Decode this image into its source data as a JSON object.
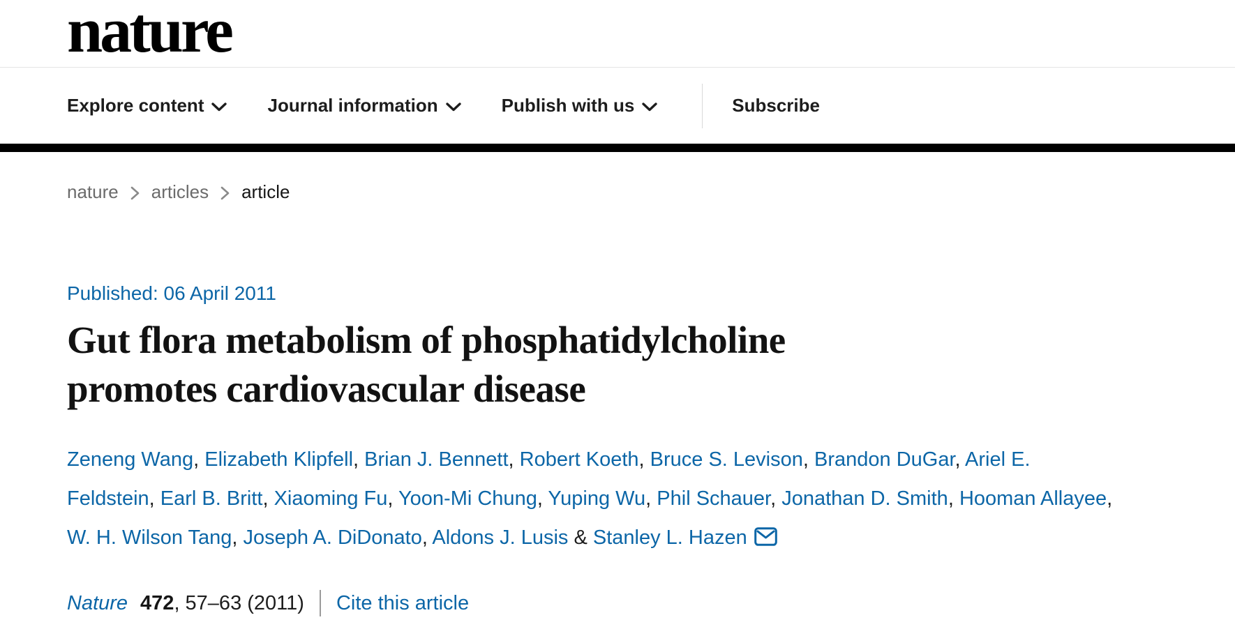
{
  "header": {
    "logo_text": "nature",
    "nav_items": [
      {
        "label": "Explore content"
      },
      {
        "label": "Journal information"
      },
      {
        "label": "Publish with us"
      }
    ],
    "subscribe_label": "Subscribe"
  },
  "breadcrumb": {
    "items": [
      "nature",
      "articles",
      "article"
    ]
  },
  "article": {
    "published_line": "Published: 06 April 2011",
    "title": "Gut flora metabolism of phosphatidylcholine promotes cardiovascular disease",
    "authors": [
      "Zeneng Wang",
      "Elizabeth Klipfell",
      "Brian J. Bennett",
      "Robert Koeth",
      "Bruce S. Levison",
      "Brandon DuGar",
      "Ariel E. Feldstein",
      "Earl B. Britt",
      "Xiaoming Fu",
      "Yoon-Mi Chung",
      "Yuping Wu",
      "Phil Schauer",
      "Jonathan D. Smith",
      "Hooman Allayee",
      "W. H. Wilson Tang",
      "Joseph A. DiDonato",
      "Aldons J. Lusis",
      "Stanley L. Hazen"
    ],
    "author_separator": ", ",
    "last_author_separator": " & ",
    "corresponding_author_icon": "email-icon",
    "citation": {
      "journal": "Nature",
      "volume": "472",
      "pages_and_year": ", 57–63 (2011)",
      "cite_link_label": "Cite this article"
    }
  },
  "colors": {
    "link_blue": "#0c66a7",
    "header_rule_black": "#000000",
    "breadcrumb_gray": "#6b6b6b"
  }
}
